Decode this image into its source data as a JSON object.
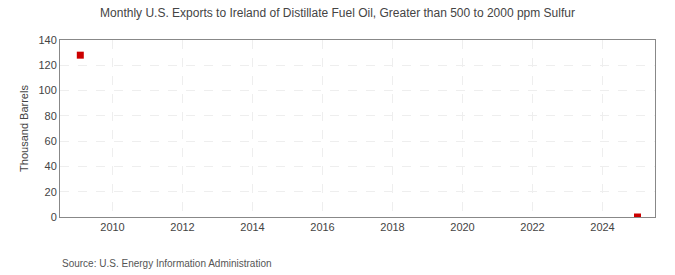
{
  "chart_data": {
    "type": "scatter",
    "title": "Monthly U.S. Exports to Ireland of Distillate Fuel Oil, Greater than 500 to 2000 ppm Sulfur",
    "ylabel": "Thousand Barrels",
    "annotations": [
      "Source: U.S. Energy Information Administration"
    ],
    "x": [
      2009.08,
      2025.0
    ],
    "values": [
      128,
      0
    ],
    "color": "#cc0000",
    "marker": "square",
    "xlim": [
      2008.5,
      2025.5
    ],
    "xticks": [
      2010,
      2012,
      2014,
      2016,
      2018,
      2020,
      2022,
      2024
    ],
    "ylim": [
      0,
      140
    ],
    "yticks": [
      0,
      20,
      40,
      60,
      80,
      100,
      120,
      140
    ],
    "grid": true
  }
}
